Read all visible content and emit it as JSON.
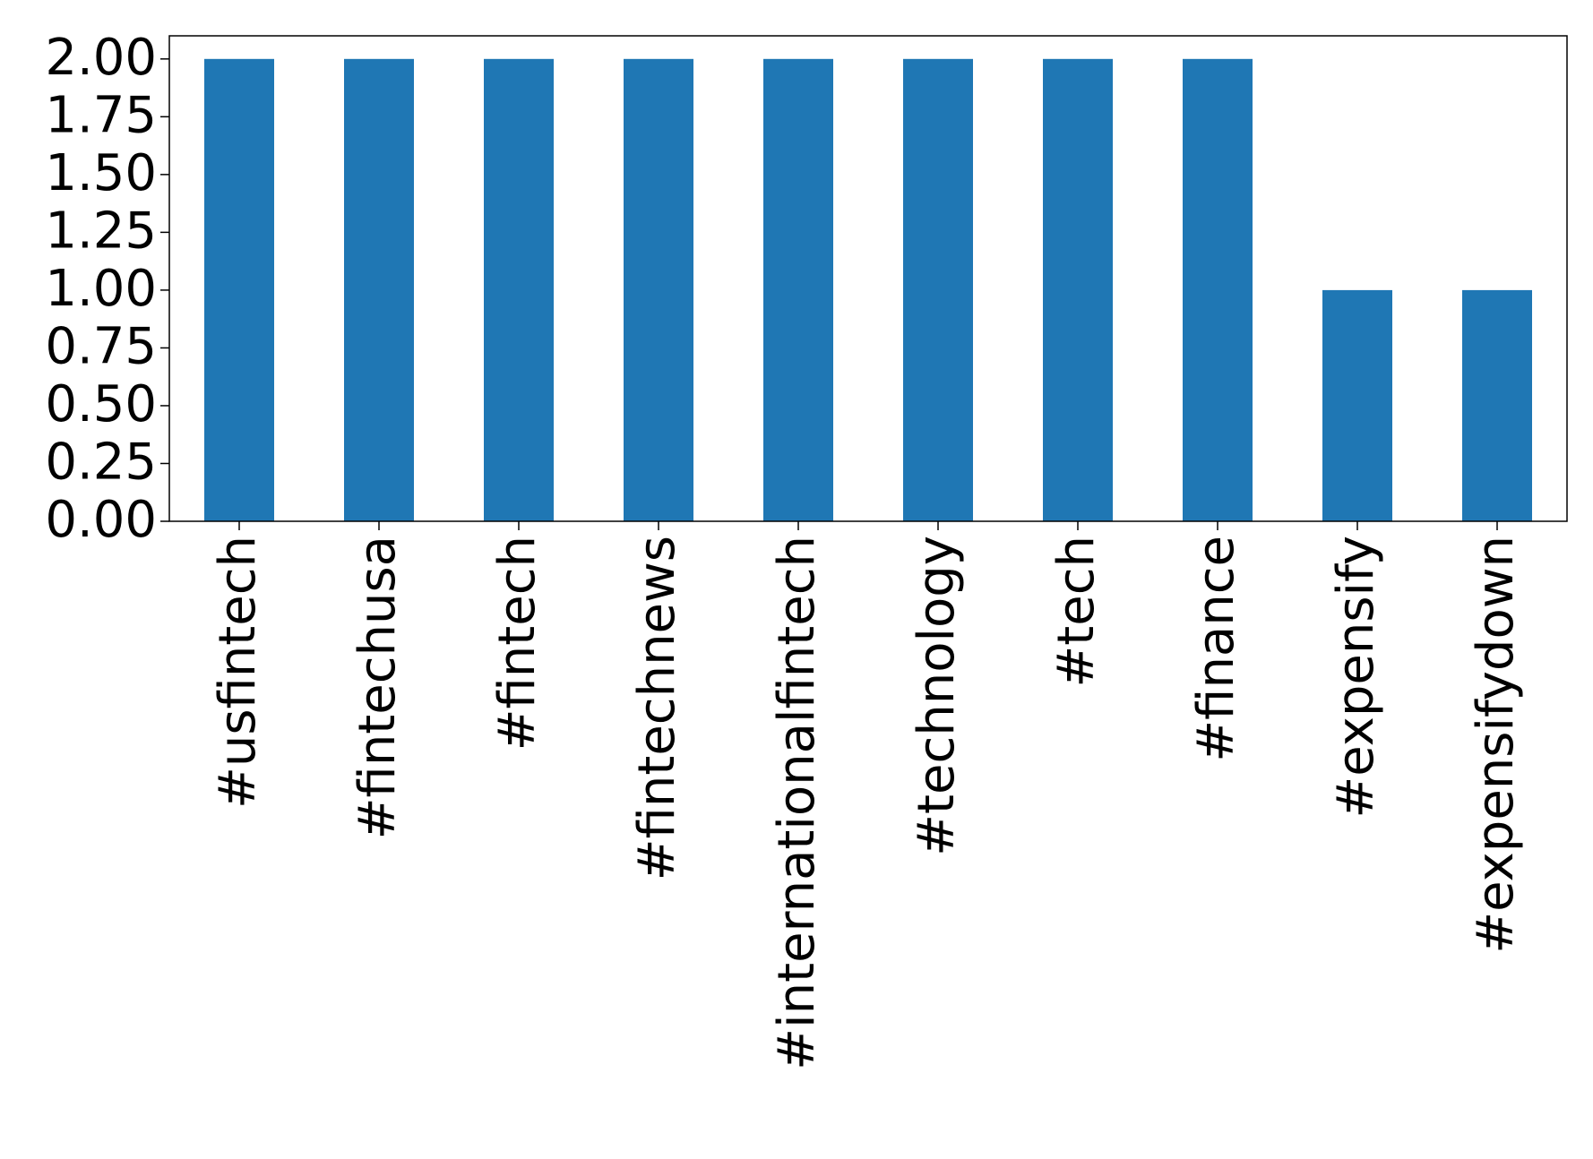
{
  "chart_data": {
    "type": "bar",
    "categories": [
      "#usfintech",
      "#fintechusa",
      "#fintech",
      "#fintechnews",
      "#internationalfintech",
      "#technology",
      "#tech",
      "#finance",
      "#expensify",
      "#expensifydown"
    ],
    "values": [
      2,
      2,
      2,
      2,
      2,
      2,
      2,
      2,
      1,
      1
    ],
    "color": "#1f77b4",
    "ylim": [
      0,
      2.1
    ],
    "yticks": [
      {
        "value": 0,
        "label": "0.00"
      },
      {
        "value": 0.25,
        "label": "0.25"
      },
      {
        "value": 0.5,
        "label": "0.50"
      },
      {
        "value": 0.75,
        "label": "0.75"
      },
      {
        "value": 1,
        "label": "1.00"
      },
      {
        "value": 1.25,
        "label": "1.25"
      },
      {
        "value": 1.5,
        "label": "1.50"
      },
      {
        "value": 1.75,
        "label": "1.75"
      },
      {
        "value": 2,
        "label": "2.00"
      }
    ],
    "grid": false
  }
}
